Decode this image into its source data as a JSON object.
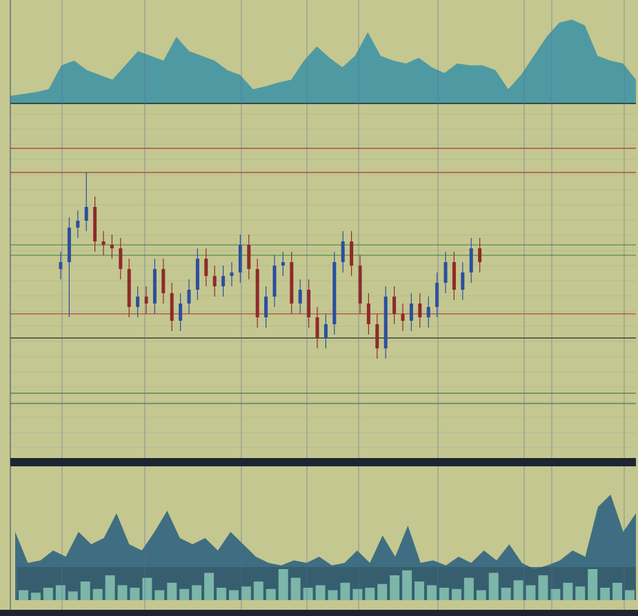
{
  "chart_data": [
    {
      "type": "area",
      "color": "#4f9aa2",
      "ylim": [
        0,
        100
      ],
      "values": [
        8,
        10,
        12,
        15,
        40,
        45,
        35,
        30,
        25,
        40,
        55,
        50,
        45,
        70,
        55,
        50,
        45,
        35,
        30,
        15,
        18,
        22,
        25,
        45,
        60,
        48,
        38,
        50,
        75,
        50,
        45,
        42,
        48,
        38,
        32,
        42,
        40,
        40,
        35,
        15,
        30,
        50,
        70,
        85,
        88,
        82,
        50,
        45,
        42,
        25
      ]
    },
    {
      "type": "candlestick",
      "ylim": [
        0,
        100
      ],
      "up_color": "#2b4f9e",
      "down_color": "#8f2a2a",
      "open": [
        54,
        56,
        66,
        68,
        72,
        62,
        61,
        60,
        54,
        43,
        46,
        44,
        54,
        47,
        39,
        44,
        48,
        57,
        52,
        49,
        52,
        53,
        61,
        54,
        40,
        46,
        55,
        56,
        44,
        48,
        40,
        34,
        38,
        56,
        62,
        55,
        44,
        38,
        31,
        46,
        41,
        39,
        44,
        40,
        43,
        50,
        56,
        48,
        53,
        60
      ],
      "high": [
        59,
        69,
        71,
        82,
        75,
        65,
        64,
        63,
        57,
        49,
        49,
        57,
        57,
        50,
        47,
        51,
        60,
        60,
        55,
        55,
        56,
        64,
        64,
        57,
        49,
        58,
        59,
        59,
        51,
        51,
        43,
        41,
        59,
        65,
        65,
        58,
        47,
        41,
        49,
        49,
        44,
        47,
        47,
        46,
        53,
        59,
        59,
        56,
        63,
        63
      ],
      "low": [
        51,
        40,
        63,
        65,
        59,
        58,
        57,
        51,
        40,
        40,
        41,
        41,
        44,
        36,
        36,
        41,
        45,
        49,
        46,
        46,
        49,
        50,
        51,
        37,
        37,
        43,
        52,
        41,
        41,
        37,
        31,
        31,
        35,
        53,
        52,
        41,
        35,
        28,
        28,
        38,
        36,
        36,
        37,
        37,
        40,
        47,
        45,
        45,
        50,
        53
      ],
      "close": [
        56,
        66,
        68,
        72,
        62,
        61,
        60,
        54,
        43,
        46,
        44,
        54,
        47,
        39,
        44,
        48,
        57,
        52,
        49,
        52,
        53,
        61,
        54,
        40,
        46,
        55,
        56,
        44,
        48,
        40,
        34,
        38,
        56,
        62,
        55,
        44,
        38,
        31,
        46,
        41,
        39,
        44,
        40,
        43,
        50,
        56,
        48,
        53,
        60,
        56
      ],
      "levels": [
        {
          "value": 89,
          "color": "#a83a2e"
        },
        {
          "value": 82,
          "color": "#a83a2e"
        },
        {
          "value": 61,
          "color": "#5a8a4a"
        },
        {
          "value": 58,
          "color": "#5a8a4a"
        },
        {
          "value": 41,
          "color": "#b04a3a"
        },
        {
          "value": 34,
          "color": "#1e2a2a"
        },
        {
          "value": 18,
          "color": "#4a7a4a"
        },
        {
          "value": 15,
          "color": "#4a7a4a"
        }
      ]
    },
    {
      "type": "area-bars",
      "color": "#3f6e82",
      "bar_color": "#7bb6a8",
      "ylim": [
        0,
        100
      ],
      "values": [
        55,
        30,
        32,
        40,
        35,
        55,
        45,
        50,
        70,
        45,
        40,
        55,
        72,
        50,
        45,
        50,
        40,
        55,
        45,
        35,
        30,
        28,
        32,
        30,
        35,
        28,
        30,
        40,
        30,
        52,
        35,
        60,
        30,
        32,
        28,
        35,
        30,
        40,
        32,
        45,
        30,
        25,
        28,
        32,
        40,
        35,
        75,
        85,
        55,
        70
      ],
      "bars": [
        8,
        6,
        10,
        12,
        7,
        15,
        9,
        20,
        12,
        10,
        18,
        8,
        14,
        9,
        12,
        22,
        10,
        8,
        11,
        15,
        9,
        25,
        18,
        10,
        12,
        8,
        14,
        9,
        10,
        13,
        20,
        24,
        15,
        12,
        10,
        9,
        18,
        8,
        22,
        10,
        16,
        12,
        20,
        9,
        14,
        11,
        25,
        10,
        14,
        8
      ]
    }
  ]
}
